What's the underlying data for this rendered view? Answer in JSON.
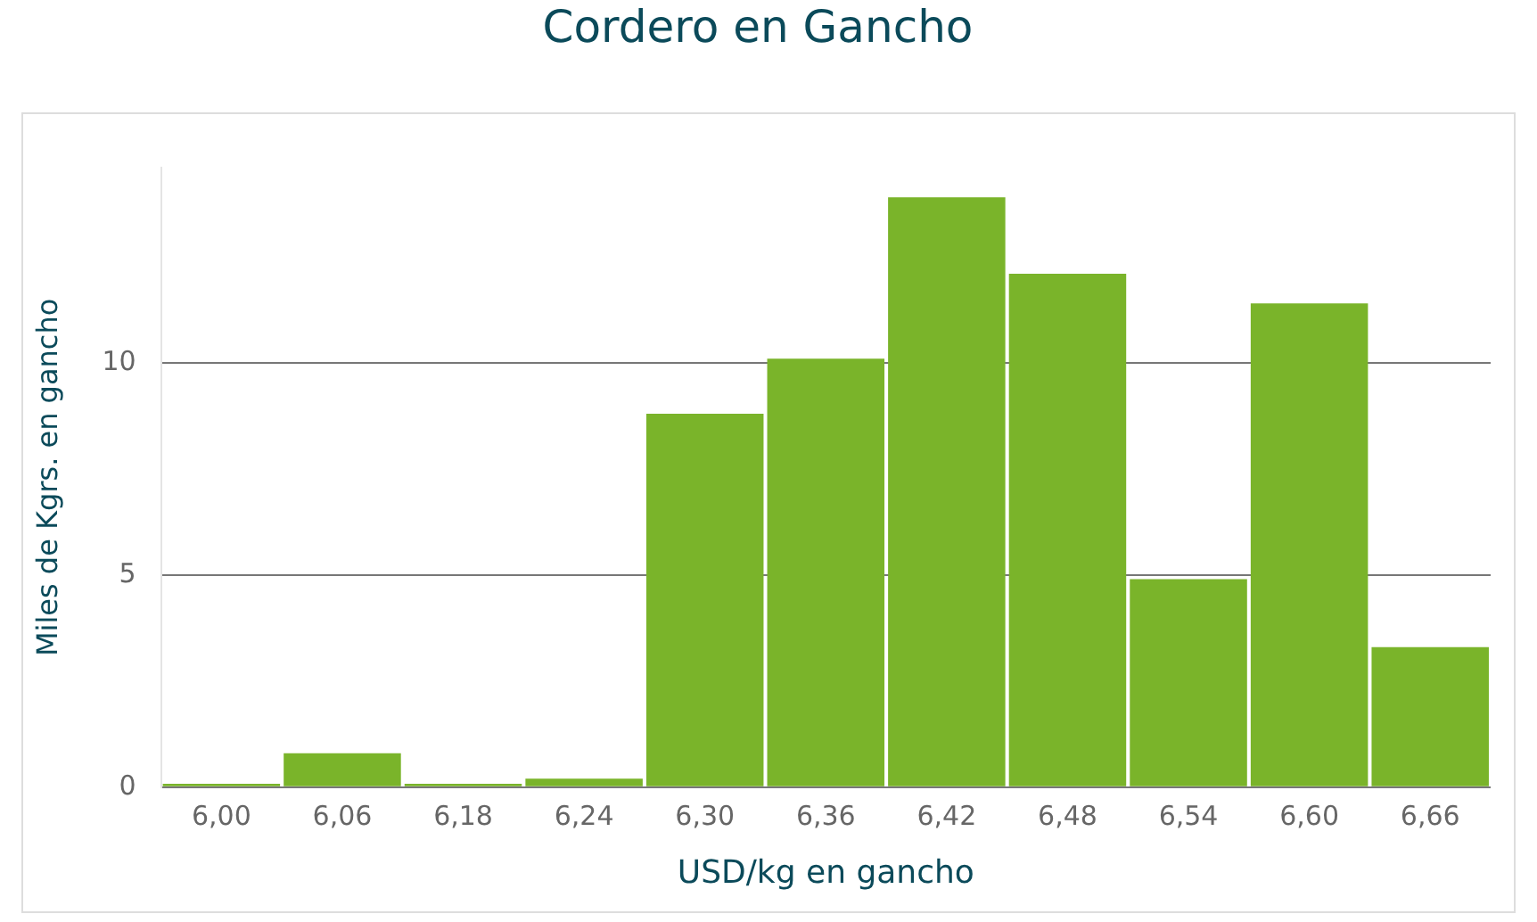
{
  "chart_data": {
    "type": "bar",
    "title": "Cordero en Gancho",
    "xlabel": "USD/kg en gancho",
    "ylabel": "Miles de Kgrs. en gancho",
    "categories": [
      "6,00",
      "6,06",
      "6,18",
      "6,24",
      "6,30",
      "6,36",
      "6,42",
      "6,48",
      "6,54",
      "6,60",
      "6,66"
    ],
    "values": [
      0.08,
      0.8,
      0.08,
      0.2,
      8.8,
      10.1,
      13.9,
      12.1,
      4.9,
      11.4,
      3.3
    ],
    "color": "#7ab42a",
    "ylim": [
      0,
      14.6
    ],
    "yticks": [
      0,
      5,
      10
    ],
    "grid": "y",
    "legend": false
  }
}
